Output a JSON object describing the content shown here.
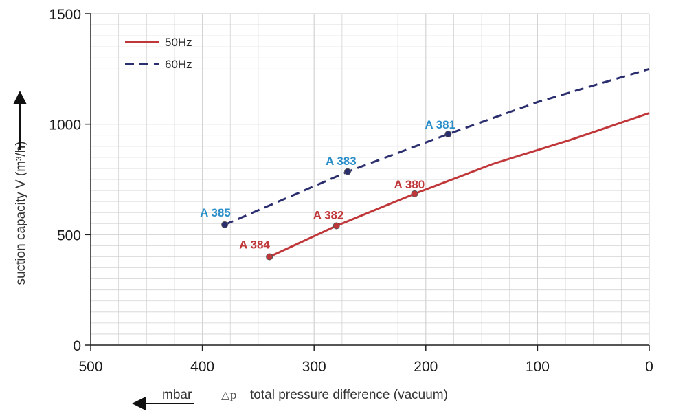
{
  "chart_data": {
    "type": "line",
    "title": "",
    "xlabel": "total pressure difference (vacuum)",
    "xlabel_symbol": "△p",
    "xunit": "mbar",
    "ylabel": "suction capacity V (m³/h)",
    "xlim": [
      500,
      0
    ],
    "ylim": [
      0,
      1500
    ],
    "x_ticks": [
      500,
      400,
      300,
      200,
      100,
      0
    ],
    "y_ticks": [
      0,
      500,
      1000,
      1500
    ],
    "grid": true,
    "legend_position": "top-left",
    "colors": {
      "50Hz": "#c0373a",
      "60Hz": "#2a2d6e",
      "label_50Hz": "#c0373a",
      "label_60Hz": "#2a8fc9",
      "grid": "#d3d3d3",
      "axis": "#222222"
    },
    "series": [
      {
        "name": "50Hz",
        "style": "solid",
        "x": [
          340,
          280,
          210,
          140,
          70,
          0
        ],
        "y": [
          400,
          540,
          685,
          820,
          930,
          1050
        ]
      },
      {
        "name": "60Hz",
        "style": "dashed",
        "x": [
          380,
          270,
          180,
          100,
          0
        ],
        "y": [
          545,
          785,
          955,
          1100,
          1250
        ]
      }
    ],
    "annotations": [
      {
        "label": "A 384",
        "series": "50Hz",
        "x": 340,
        "y": 400
      },
      {
        "label": "A 382",
        "series": "50Hz",
        "x": 280,
        "y": 540
      },
      {
        "label": "A 380",
        "series": "50Hz",
        "x": 210,
        "y": 685
      },
      {
        "label": "A 385",
        "series": "60Hz",
        "x": 380,
        "y": 545
      },
      {
        "label": "A 383",
        "series": "60Hz",
        "x": 270,
        "y": 785
      },
      {
        "label": "A 381",
        "series": "60Hz",
        "x": 180,
        "y": 955
      }
    ]
  }
}
